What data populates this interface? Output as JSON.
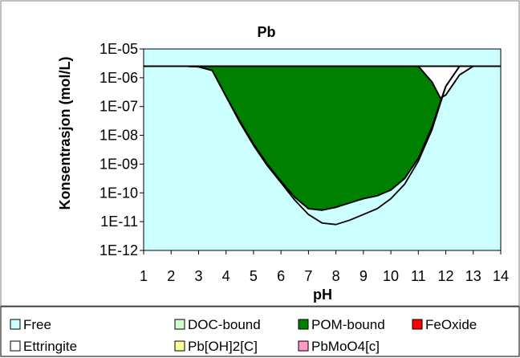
{
  "colors": {
    "Free": "#ccffff",
    "DOC-bound": "#ccffcc",
    "POM-bound": "#008000",
    "FeOxide": "#ff0000",
    "Ettringite": "#ffffff",
    "Pb[OH]2[C]": "#ffff99",
    "PbMoO4[c]": "#ff99cc",
    "outline": "#000000",
    "plot_border": "#808080"
  },
  "chart_data": {
    "type": "area",
    "title": "Pb",
    "xlabel": "pH",
    "ylabel": "Konsentrasjon (mol/L)",
    "xlim": [
      1,
      14
    ],
    "ylim": [
      1e-12,
      1e-05
    ],
    "yscale": "log",
    "grid": false,
    "legend_position": "bottom",
    "x_ticks": [
      "1",
      "2",
      "3",
      "4",
      "5",
      "6",
      "7",
      "8",
      "9",
      "10",
      "11",
      "12",
      "13",
      "14"
    ],
    "y_ticks": [
      "1E-12",
      "1E-11",
      "1E-10",
      "1E-09",
      "1E-08",
      "1E-07",
      "1E-06",
      "1E-05"
    ],
    "x": [
      1,
      2,
      2.5,
      3,
      3.5,
      4,
      4.5,
      5,
      5.5,
      6,
      6.5,
      7,
      7.5,
      8,
      8.5,
      9,
      9.5,
      10,
      10.5,
      11,
      11.5,
      11.8,
      12,
      12.5,
      13,
      14
    ],
    "total_log": [
      -5.6,
      -5.6,
      -5.6,
      -5.6,
      -5.6,
      -5.6,
      -5.6,
      -5.6,
      -5.6,
      -5.6,
      -5.6,
      -5.6,
      -5.6,
      -5.6,
      -5.6,
      -5.6,
      -5.6,
      -5.6,
      -5.6,
      -5.6,
      -5.6,
      -5.6,
      -5.6,
      -5.6,
      -5.6,
      -5.6
    ],
    "series": [
      {
        "name": "Free",
        "log_values": [
          -5.6,
          -5.6,
          -5.6,
          -5.62,
          -5.75,
          -6.65,
          -7.55,
          -8.35,
          -9.05,
          -9.65,
          -10.25,
          -10.75,
          -11.05,
          -11.1,
          -10.95,
          -10.75,
          -10.55,
          -10.2,
          -9.7,
          -8.9,
          -7.8,
          -6.9,
          -6.3,
          -5.6,
          -5.6,
          -5.6
        ]
      },
      {
        "name": "DOC-bound",
        "log_values": [
          -5.6,
          -5.6,
          -5.6,
          -5.62,
          -5.75,
          -6.65,
          -7.5,
          -8.3,
          -9.0,
          -9.6,
          -10.15,
          -10.55,
          -10.6,
          -10.5,
          -10.35,
          -10.2,
          -10.1,
          -9.9,
          -9.5,
          -8.8,
          -7.7,
          -6.85,
          -6.3,
          -5.6,
          -5.6,
          -5.6
        ]
      },
      {
        "name": "POM-bound",
        "log_values": [
          -5.6,
          -5.6,
          -5.6,
          -5.62,
          -5.75,
          -6.65,
          -7.5,
          -8.3,
          -9.0,
          -9.6,
          -10.15,
          -10.55,
          -10.6,
          -10.5,
          -10.35,
          -10.2,
          -10.1,
          -9.9,
          -9.5,
          -8.8,
          -7.7,
          -6.85,
          -6.3,
          -5.6,
          -5.6,
          -5.6
        ]
      },
      {
        "name": "FeOxide",
        "log_values": [
          -5.6,
          -5.6,
          -5.6,
          -5.6,
          -5.6,
          -5.6,
          -5.6,
          -5.6,
          -5.6,
          -5.6,
          -5.6,
          -5.6,
          -5.6,
          -5.6,
          -5.6,
          -5.6,
          -5.6,
          -5.6,
          -5.6,
          -5.6,
          -6.15,
          -6.7,
          -6.6,
          -5.9,
          -5.6,
          -5.6
        ]
      },
      {
        "name": "Ettringite",
        "log_values": [
          -5.6,
          -5.6,
          -5.6,
          -5.6,
          -5.6,
          -5.6,
          -5.6,
          -5.6,
          -5.6,
          -5.6,
          -5.6,
          -5.6,
          -5.6,
          -5.6,
          -5.6,
          -5.6,
          -5.6,
          -5.6,
          -5.6,
          -5.6,
          -6.15,
          -6.7,
          -6.6,
          -5.9,
          -5.6,
          -5.6
        ]
      },
      {
        "name": "Pb[OH]2[C]",
        "log_values": [
          -5.6,
          -5.6,
          -5.6,
          -5.6,
          -5.6,
          -5.6,
          -5.6,
          -5.6,
          -5.6,
          -5.6,
          -5.6,
          -5.6,
          -5.6,
          -5.6,
          -5.6,
          -5.6,
          -5.6,
          -5.6,
          -5.6,
          -5.6,
          -5.6,
          -5.6,
          -5.6,
          -5.6,
          -5.6,
          -5.6
        ]
      },
      {
        "name": "PbMoO4[c]",
        "log_values": [
          -5.6,
          -5.6,
          -5.6,
          -5.6,
          -5.6,
          -5.6,
          -5.6,
          -5.6,
          -5.6,
          -5.6,
          -5.6,
          -5.6,
          -5.6,
          -5.6,
          -5.6,
          -5.6,
          -5.6,
          -5.6,
          -5.6,
          -5.6,
          -5.6,
          -5.6,
          -5.6,
          -5.6,
          -5.6,
          -5.6
        ]
      }
    ],
    "legend": [
      [
        "Free",
        "DOC-bound",
        "POM-bound",
        "FeOxide"
      ],
      [
        "Ettringite",
        "Pb[OH]2[C]",
        "PbMoO4[c]"
      ]
    ]
  }
}
